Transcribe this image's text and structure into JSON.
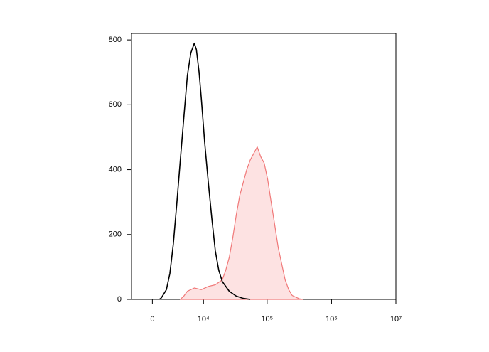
{
  "chart_data": {
    "type": "line",
    "xscale": "biexponential",
    "xlim": [
      -2700,
      10000000
    ],
    "ylim": [
      0,
      820
    ],
    "xticks": [
      0,
      {
        "value": 10000,
        "label": "10⁴"
      },
      {
        "value": 100000,
        "label": "10⁵"
      },
      {
        "value": 1000000,
        "label": "10⁶"
      },
      {
        "value": 10000000,
        "label": "10⁷"
      }
    ],
    "yticks": [
      0,
      200,
      400,
      600,
      800
    ],
    "series": [
      {
        "color": "#000000",
        "filled": false,
        "x": [
          834,
          1090,
          1720,
          2200,
          2710,
          3280,
          3880,
          4540,
          5290,
          6110,
          7030,
          7630,
          8470,
          9210,
          10500,
          11970,
          13640,
          15490,
          17600,
          19970,
          25700,
          33060,
          42500,
          54600
        ],
        "values": [
          0,
          5,
          30,
          80,
          170,
          300,
          430,
          560,
          690,
          760,
          790,
          770,
          700,
          620,
          480,
          360,
          250,
          150,
          90,
          55,
          25,
          10,
          3,
          0
        ]
      },
      {
        "color": "#f07878",
        "fill": "#fde2e2",
        "filled": true,
        "x": [
          3880,
          4540,
          5290,
          7030,
          9210,
          11970,
          15490,
          19970,
          22650,
          25700,
          29150,
          33060,
          37490,
          42500,
          48160,
          54600,
          61900,
          70150,
          79500,
          90060,
          102000,
          115600,
          131000,
          148500,
          168300,
          190700,
          216100,
          244900,
          314500,
          356500
        ],
        "values": [
          0,
          10,
          25,
          35,
          30,
          40,
          45,
          60,
          90,
          130,
          190,
          260,
          320,
          360,
          400,
          430,
          450,
          470,
          440,
          420,
          370,
          300,
          230,
          160,
          110,
          60,
          30,
          12,
          2,
          0
        ]
      }
    ]
  }
}
